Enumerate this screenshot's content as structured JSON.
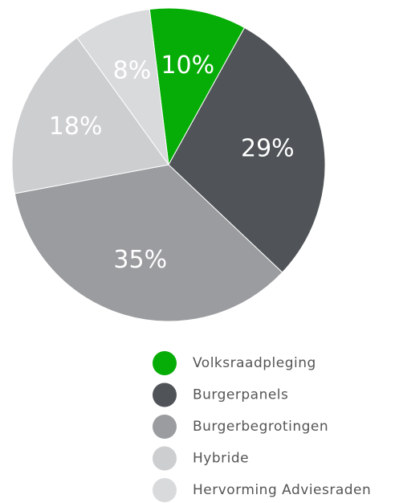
{
  "chart_data": {
    "type": "pie",
    "categories": [
      "Volksraadpleging",
      "Burgerpanels",
      "Burgerbegrotingen",
      "Hybride",
      "Hervorming Adviesraden"
    ],
    "values": [
      10,
      29,
      35,
      18,
      8
    ],
    "value_labels": [
      "10%",
      "29%",
      "35%",
      "18%",
      "8%"
    ],
    "colors": [
      "#07ad07",
      "#505458",
      "#9b9c9f",
      "#cdced0",
      "#d9dadc"
    ],
    "legend": "bottom"
  }
}
